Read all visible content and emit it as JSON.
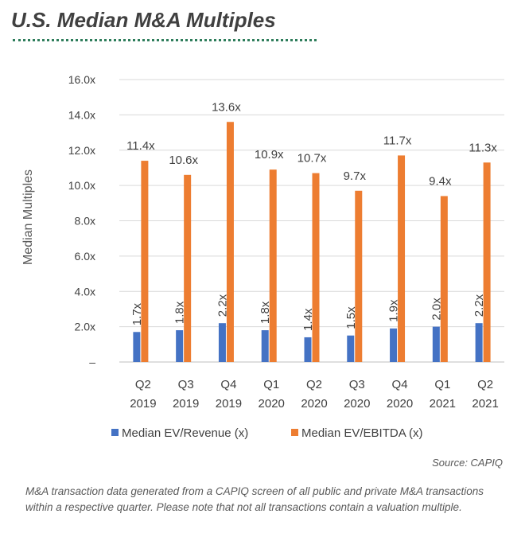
{
  "header": {
    "title": "U.S. Median M&A Multiples"
  },
  "chart_data": {
    "type": "bar",
    "title": "",
    "xlabel": "",
    "ylabel": "Median Multiples",
    "ylim": [
      0,
      16
    ],
    "y_ticks": [
      "–",
      "2.0x",
      "4.0x",
      "6.0x",
      "8.0x",
      "10.0x",
      "12.0x",
      "14.0x",
      "16.0x"
    ],
    "categories": [
      [
        "Q2",
        "2019"
      ],
      [
        "Q3",
        "2019"
      ],
      [
        "Q4",
        "2019"
      ],
      [
        "Q1",
        "2020"
      ],
      [
        "Q2",
        "2020"
      ],
      [
        "Q3",
        "2020"
      ],
      [
        "Q4",
        "2020"
      ],
      [
        "Q1",
        "2021"
      ],
      [
        "Q2",
        "2021"
      ]
    ],
    "series": [
      {
        "name": "Median EV/Revenue (x)",
        "color": "#4472c4",
        "values": [
          1.7,
          1.8,
          2.2,
          1.8,
          1.4,
          1.5,
          1.9,
          2.0,
          2.2
        ],
        "labels": [
          "1.7x",
          "1.8x",
          "2.2x",
          "1.8x",
          "1.4x",
          "1.5x",
          "1.9x",
          "2.0x",
          "2.2x"
        ]
      },
      {
        "name": "Median EV/EBITDA (x)",
        "color": "#ed7d31",
        "values": [
          11.4,
          10.6,
          13.6,
          10.9,
          10.7,
          9.7,
          11.7,
          9.4,
          11.3
        ],
        "labels": [
          "11.4x",
          "10.6x",
          "13.6x",
          "10.9x",
          "10.7x",
          "9.7x",
          "11.7x",
          "9.4x",
          "11.3x"
        ]
      }
    ],
    "grid": true,
    "legend": "bottom"
  },
  "source": "Source: CAPIQ",
  "footnote": "M&A transaction data generated from a CAPIQ screen of all public and private M&A transactions within a respective quarter. Please note that not all transactions contain a valuation multiple."
}
